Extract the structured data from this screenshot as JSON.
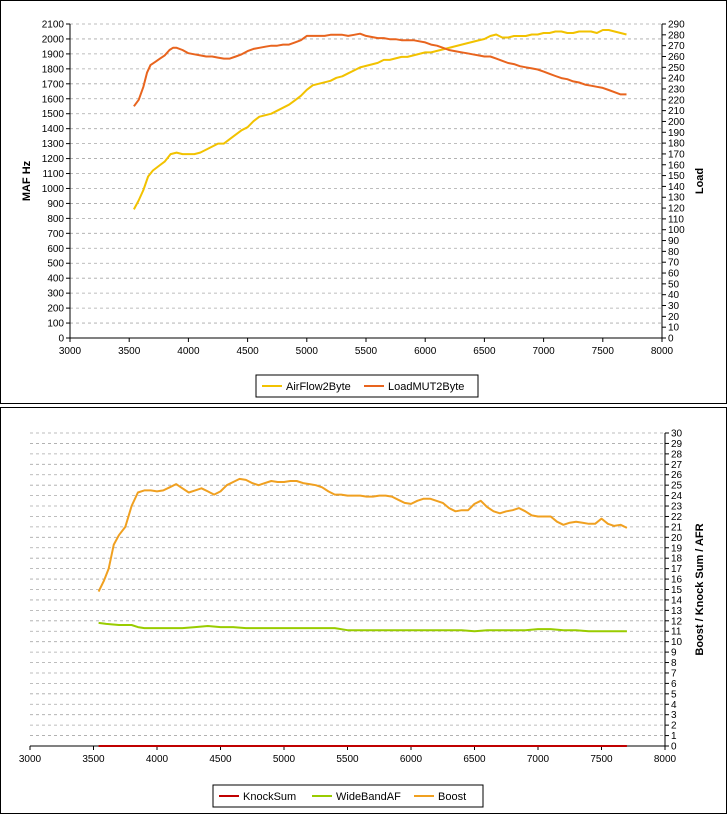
{
  "chart_data": [
    {
      "type": "line",
      "xlim": [
        3000,
        8000
      ],
      "xticks": [
        3000,
        3500,
        4000,
        4500,
        5000,
        5500,
        6000,
        6500,
        7000,
        7500,
        8000
      ],
      "ylabel": "MAF Hz",
      "ylim": [
        0,
        2100
      ],
      "yticks": [
        0,
        100,
        200,
        300,
        400,
        500,
        600,
        700,
        800,
        900,
        1000,
        1100,
        1200,
        1300,
        1400,
        1500,
        1600,
        1700,
        1800,
        1900,
        2000,
        2100
      ],
      "y2label": "Load",
      "y2lim": [
        0,
        290
      ],
      "y2ticks": [
        0,
        10,
        20,
        30,
        40,
        50,
        60,
        70,
        80,
        90,
        100,
        110,
        120,
        130,
        140,
        150,
        160,
        170,
        180,
        190,
        200,
        210,
        220,
        230,
        240,
        250,
        260,
        270,
        280,
        290
      ],
      "grid": true,
      "legend": "bottom",
      "series": [
        {
          "name": "AirFlow2Byte",
          "axis": "left",
          "color": "#f2c200",
          "x": [
            3540,
            3580,
            3620,
            3660,
            3700,
            3750,
            3800,
            3850,
            3900,
            3950,
            4000,
            4050,
            4100,
            4150,
            4200,
            4250,
            4300,
            4350,
            4400,
            4450,
            4500,
            4550,
            4600,
            4650,
            4700,
            4750,
            4800,
            4850,
            4900,
            4950,
            5000,
            5050,
            5100,
            5150,
            5200,
            5250,
            5300,
            5350,
            5400,
            5450,
            5500,
            5550,
            5600,
            5650,
            5700,
            5750,
            5800,
            5850,
            5900,
            5950,
            6000,
            6050,
            6100,
            6150,
            6200,
            6250,
            6300,
            6350,
            6400,
            6450,
            6500,
            6550,
            6600,
            6650,
            6700,
            6750,
            6800,
            6850,
            6900,
            6950,
            7000,
            7050,
            7100,
            7150,
            7200,
            7250,
            7300,
            7350,
            7400,
            7450,
            7500,
            7550,
            7600,
            7650,
            7700
          ],
          "values": [
            860,
            920,
            990,
            1080,
            1120,
            1150,
            1180,
            1230,
            1240,
            1230,
            1230,
            1230,
            1240,
            1260,
            1280,
            1300,
            1300,
            1330,
            1360,
            1390,
            1410,
            1450,
            1480,
            1490,
            1500,
            1520,
            1540,
            1560,
            1590,
            1620,
            1660,
            1690,
            1700,
            1710,
            1720,
            1740,
            1750,
            1770,
            1790,
            1810,
            1820,
            1830,
            1840,
            1860,
            1860,
            1870,
            1880,
            1880,
            1890,
            1900,
            1910,
            1910,
            1920,
            1930,
            1940,
            1950,
            1960,
            1970,
            1980,
            1990,
            2000,
            2020,
            2030,
            2010,
            2010,
            2020,
            2020,
            2020,
            2030,
            2030,
            2040,
            2040,
            2050,
            2050,
            2040,
            2040,
            2050,
            2050,
            2050,
            2040,
            2060,
            2060,
            2050,
            2040,
            2030
          ]
        },
        {
          "name": "LoadMUT2Byte",
          "axis": "right",
          "color": "#e8641e",
          "x": [
            3540,
            3580,
            3620,
            3650,
            3680,
            3720,
            3760,
            3800,
            3840,
            3870,
            3900,
            3950,
            4000,
            4050,
            4100,
            4150,
            4200,
            4250,
            4300,
            4350,
            4400,
            4450,
            4500,
            4550,
            4600,
            4650,
            4700,
            4750,
            4800,
            4850,
            4900,
            4950,
            5000,
            5050,
            5100,
            5150,
            5200,
            5250,
            5300,
            5350,
            5400,
            5450,
            5500,
            5550,
            5600,
            5650,
            5700,
            5750,
            5800,
            5850,
            5900,
            5950,
            6000,
            6050,
            6100,
            6150,
            6200,
            6250,
            6300,
            6350,
            6400,
            6450,
            6500,
            6550,
            6600,
            6650,
            6700,
            6750,
            6800,
            6850,
            6900,
            6950,
            7000,
            7050,
            7100,
            7150,
            7200,
            7250,
            7300,
            7350,
            7400,
            7450,
            7500,
            7550,
            7600,
            7650,
            7700
          ],
          "values": [
            214,
            220,
            232,
            245,
            252,
            255,
            258,
            261,
            266,
            268,
            268,
            266,
            263,
            262,
            261,
            260,
            260,
            259,
            258,
            258,
            260,
            262,
            265,
            267,
            268,
            269,
            270,
            270,
            271,
            271,
            273,
            275,
            279,
            279,
            279,
            279,
            280,
            280,
            280,
            279,
            280,
            281,
            279,
            278,
            277,
            277,
            276,
            276,
            275,
            275,
            275,
            274,
            273,
            271,
            270,
            268,
            266,
            265,
            264,
            263,
            262,
            261,
            260,
            260,
            258,
            256,
            254,
            253,
            251,
            250,
            249,
            248,
            246,
            244,
            242,
            240,
            239,
            237,
            236,
            234,
            233,
            232,
            231,
            229,
            227,
            225,
            225
          ]
        }
      ]
    },
    {
      "type": "line",
      "xlim": [
        3000,
        8000
      ],
      "xticks": [
        3000,
        3500,
        4000,
        4500,
        5000,
        5500,
        6000,
        6500,
        7000,
        7500,
        8000
      ],
      "y2label": "Boost / Knock Sum / AFR",
      "y2lim": [
        0,
        30
      ],
      "y2ticks": [
        0,
        1,
        2,
        3,
        4,
        5,
        6,
        7,
        8,
        9,
        10,
        11,
        12,
        13,
        14,
        15,
        16,
        17,
        18,
        19,
        20,
        21,
        22,
        23,
        24,
        25,
        26,
        27,
        28,
        29,
        30
      ],
      "grid": true,
      "legend": "bottom",
      "series": [
        {
          "name": "KnockSum",
          "axis": "right",
          "color": "#c00000",
          "x": [
            3540,
            7700
          ],
          "values": [
            0,
            0
          ]
        },
        {
          "name": "WideBandAF",
          "axis": "right",
          "color": "#99cc00",
          "x": [
            3540,
            3600,
            3700,
            3800,
            3850,
            3900,
            4000,
            4100,
            4200,
            4300,
            4400,
            4500,
            4600,
            4700,
            4800,
            4900,
            5000,
            5100,
            5200,
            5300,
            5400,
            5500,
            5600,
            5700,
            5800,
            5900,
            6000,
            6100,
            6200,
            6300,
            6400,
            6500,
            6600,
            6700,
            6800,
            6900,
            7000,
            7100,
            7200,
            7300,
            7400,
            7500,
            7600,
            7700
          ],
          "values": [
            11.8,
            11.7,
            11.6,
            11.6,
            11.4,
            11.3,
            11.3,
            11.3,
            11.3,
            11.4,
            11.5,
            11.4,
            11.4,
            11.3,
            11.3,
            11.3,
            11.3,
            11.3,
            11.3,
            11.3,
            11.3,
            11.1,
            11.1,
            11.1,
            11.1,
            11.1,
            11.1,
            11.1,
            11.1,
            11.1,
            11.1,
            11.0,
            11.1,
            11.1,
            11.1,
            11.1,
            11.2,
            11.2,
            11.1,
            11.1,
            11.0,
            11.0,
            11.0,
            11.0
          ]
        },
        {
          "name": "Boost",
          "axis": "right",
          "color": "#f0a020",
          "x": [
            3540,
            3580,
            3620,
            3660,
            3700,
            3750,
            3800,
            3850,
            3900,
            3950,
            4000,
            4050,
            4100,
            4150,
            4200,
            4250,
            4300,
            4350,
            4400,
            4450,
            4500,
            4550,
            4600,
            4650,
            4700,
            4750,
            4800,
            4850,
            4900,
            4950,
            5000,
            5050,
            5100,
            5150,
            5200,
            5250,
            5300,
            5350,
            5400,
            5450,
            5500,
            5550,
            5600,
            5650,
            5700,
            5750,
            5800,
            5850,
            5900,
            5950,
            6000,
            6050,
            6100,
            6150,
            6200,
            6250,
            6300,
            6350,
            6400,
            6450,
            6500,
            6550,
            6600,
            6650,
            6700,
            6750,
            6800,
            6850,
            6900,
            6950,
            7000,
            7050,
            7100,
            7150,
            7200,
            7250,
            7300,
            7350,
            7400,
            7450,
            7500,
            7550,
            7600,
            7650,
            7700
          ],
          "values": [
            14.8,
            15.8,
            17.0,
            19.3,
            20.2,
            21.0,
            23.0,
            24.3,
            24.5,
            24.5,
            24.4,
            24.5,
            24.8,
            25.1,
            24.7,
            24.3,
            24.5,
            24.7,
            24.4,
            24.1,
            24.4,
            25.0,
            25.3,
            25.6,
            25.5,
            25.2,
            25.0,
            25.2,
            25.4,
            25.3,
            25.3,
            25.4,
            25.4,
            25.2,
            25.1,
            25.0,
            24.8,
            24.4,
            24.1,
            24.1,
            24.0,
            24.0,
            24.0,
            23.9,
            23.9,
            24.0,
            24.0,
            23.9,
            23.6,
            23.3,
            23.2,
            23.5,
            23.7,
            23.7,
            23.5,
            23.3,
            22.8,
            22.5,
            22.6,
            22.6,
            23.2,
            23.5,
            22.9,
            22.5,
            22.3,
            22.5,
            22.6,
            22.8,
            22.5,
            22.1,
            22.0,
            22.0,
            22.0,
            21.5,
            21.2,
            21.4,
            21.5,
            21.4,
            21.3,
            21.3,
            21.8,
            21.3,
            21.1,
            21.2,
            20.9
          ]
        }
      ]
    }
  ]
}
